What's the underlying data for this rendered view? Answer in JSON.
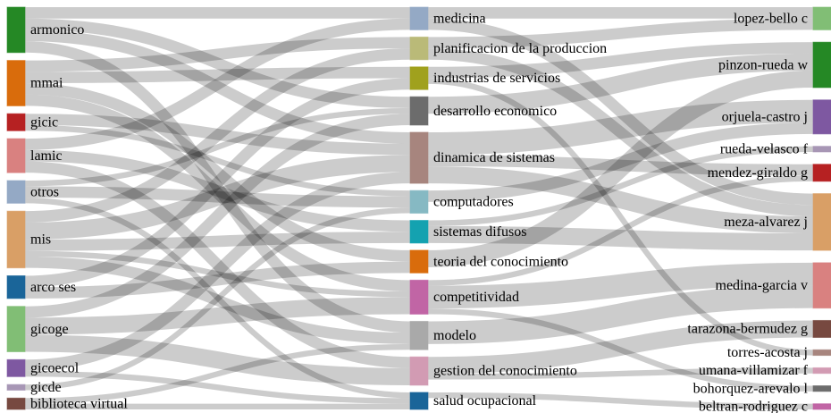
{
  "chart_data": {
    "type": "sankey",
    "nodes": [
      {
        "name": "armonico",
        "color": "#2ca02c"
      },
      {
        "name": "mmai",
        "color": "#ff7f0e"
      },
      {
        "name": "gicic",
        "color": "#d62728"
      },
      {
        "name": "lamic",
        "color": "#ff9896"
      },
      {
        "name": "otros",
        "color": "#aec7e8"
      },
      {
        "name": "mis",
        "color": "#ffbb78"
      },
      {
        "name": "arco ses",
        "color": "#1f77b4"
      },
      {
        "name": "gicoge",
        "color": "#98df8a"
      },
      {
        "name": "gicoecol",
        "color": "#9467bd"
      },
      {
        "name": "gicde",
        "color": "#c5b0d5"
      },
      {
        "name": "biblioteca virtual",
        "color": "#8c564b"
      },
      {
        "name": "medicina",
        "color": "#aec7e8"
      },
      {
        "name": "planificacion de la produccion",
        "color": "#dbdb8d"
      },
      {
        "name": "industrias de servicios",
        "color": "#bcbd22"
      },
      {
        "name": "desarrollo economico",
        "color": "#7f7f7f"
      },
      {
        "name": "dinamica de sistemas",
        "color": "#c49c94"
      },
      {
        "name": "computadores",
        "color": "#9edae5"
      },
      {
        "name": "sistemas difusos",
        "color": "#17becf"
      },
      {
        "name": "teoria del conocimiento",
        "color": "#ff7f0e"
      },
      {
        "name": "competitividad",
        "color": "#e377c2"
      },
      {
        "name": "modelo",
        "color": "#c7c7c7"
      },
      {
        "name": "gestion del conocimiento",
        "color": "#f7b6d2"
      },
      {
        "name": "salud ocupacional",
        "color": "#1f77b4"
      },
      {
        "name": "lopez-bello c",
        "color": "#98df8a"
      },
      {
        "name": "pinzon-rueda w",
        "color": "#2ca02c"
      },
      {
        "name": "orjuela-castro j",
        "color": "#9467bd"
      },
      {
        "name": "rueda-velasco f",
        "color": "#c5b0d5"
      },
      {
        "name": "mendez-giraldo g",
        "color": "#d62728"
      },
      {
        "name": "meza-alvarez j",
        "color": "#ffbb78"
      },
      {
        "name": "medina-garcia v",
        "color": "#ff9896"
      },
      {
        "name": "tarazona-bermudez g",
        "color": "#8c564b"
      },
      {
        "name": "torres-acosta j",
        "color": "#c49c94"
      },
      {
        "name": "umana-villamizar f",
        "color": "#f7b6d2"
      },
      {
        "name": "bohorquez-arevalo l",
        "color": "#7f7f7f"
      },
      {
        "name": "beltran-rodriguez c",
        "color": "#e377c2"
      }
    ],
    "links": [
      {
        "source": 0,
        "target": 11,
        "value": 2
      },
      {
        "source": 0,
        "target": 14,
        "value": 2
      },
      {
        "source": 0,
        "target": 15,
        "value": 2
      },
      {
        "source": 0,
        "target": 20,
        "value": 2
      },
      {
        "source": 1,
        "target": 12,
        "value": 2
      },
      {
        "source": 1,
        "target": 13,
        "value": 2
      },
      {
        "source": 1,
        "target": 18,
        "value": 2
      },
      {
        "source": 1,
        "target": 19,
        "value": 2
      },
      {
        "source": 2,
        "target": 15,
        "value": 2
      },
      {
        "source": 2,
        "target": 16,
        "value": 1
      },
      {
        "source": 3,
        "target": 11,
        "value": 2
      },
      {
        "source": 3,
        "target": 17,
        "value": 2
      },
      {
        "source": 3,
        "target": 21,
        "value": 2
      },
      {
        "source": 4,
        "target": 14,
        "value": 1
      },
      {
        "source": 4,
        "target": 16,
        "value": 2
      },
      {
        "source": 4,
        "target": 22,
        "value": 1
      },
      {
        "source": 5,
        "target": 12,
        "value": 2
      },
      {
        "source": 5,
        "target": 15,
        "value": 3
      },
      {
        "source": 5,
        "target": 17,
        "value": 2
      },
      {
        "source": 5,
        "target": 19,
        "value": 1
      },
      {
        "source": 5,
        "target": 20,
        "value": 2
      },
      {
        "source": 6,
        "target": 13,
        "value": 2
      },
      {
        "source": 6,
        "target": 18,
        "value": 2
      },
      {
        "source": 7,
        "target": 14,
        "value": 2
      },
      {
        "source": 7,
        "target": 19,
        "value": 3
      },
      {
        "source": 7,
        "target": 21,
        "value": 3
      },
      {
        "source": 8,
        "target": 15,
        "value": 2
      },
      {
        "source": 8,
        "target": 22,
        "value": 1
      },
      {
        "source": 9,
        "target": 16,
        "value": 1
      },
      {
        "source": 10,
        "target": 20,
        "value": 1
      },
      {
        "source": 10,
        "target": 22,
        "value": 1
      },
      {
        "source": 12,
        "target": 23,
        "value": 2
      },
      {
        "source": 11,
        "target": 23,
        "value": 2
      },
      {
        "source": 13,
        "target": 24,
        "value": 2
      },
      {
        "source": 14,
        "target": 24,
        "value": 3
      },
      {
        "source": 18,
        "target": 24,
        "value": 3
      },
      {
        "source": 15,
        "target": 25,
        "value": 4
      },
      {
        "source": 16,
        "target": 25,
        "value": 2
      },
      {
        "source": 17,
        "target": 26,
        "value": 1
      },
      {
        "source": 15,
        "target": 27,
        "value": 2
      },
      {
        "source": 19,
        "target": 27,
        "value": 1
      },
      {
        "source": 11,
        "target": 28,
        "value": 2
      },
      {
        "source": 17,
        "target": 28,
        "value": 3
      },
      {
        "source": 15,
        "target": 28,
        "value": 3
      },
      {
        "source": 12,
        "target": 28,
        "value": 2
      },
      {
        "source": 19,
        "target": 29,
        "value": 4
      },
      {
        "source": 20,
        "target": 29,
        "value": 4
      },
      {
        "source": 21,
        "target": 30,
        "value": 3
      },
      {
        "source": 13,
        "target": 31,
        "value": 1
      },
      {
        "source": 21,
        "target": 32,
        "value": 1
      },
      {
        "source": 19,
        "target": 33,
        "value": 1
      },
      {
        "source": 22,
        "target": 34,
        "value": 1
      }
    ]
  }
}
